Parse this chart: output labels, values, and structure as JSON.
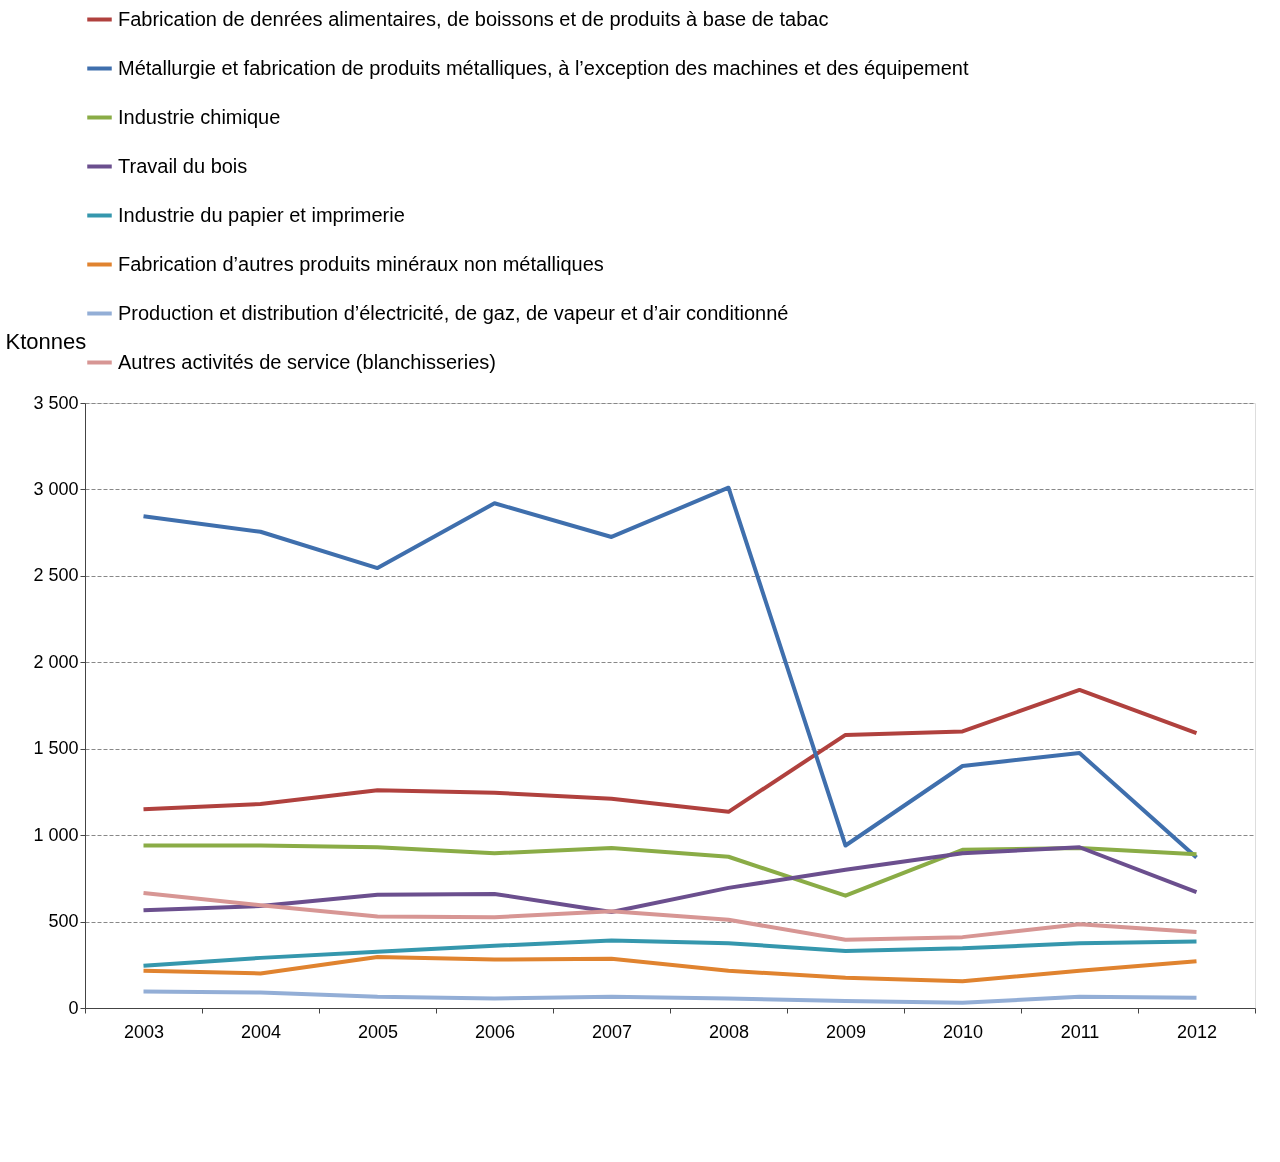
{
  "chart_data": {
    "type": "line",
    "ylabel": "Ktonnes",
    "categories": [
      "2003",
      "2004",
      "2005",
      "2006",
      "2007",
      "2008",
      "2009",
      "2010",
      "2011",
      "2012"
    ],
    "series": [
      {
        "name": "Fabrication de denrées alimentaires, de boissons et de produits à base de tabac",
        "color": "#b0413e",
        "values": [
          1150,
          1180,
          1260,
          1245,
          1210,
          1135,
          1580,
          1600,
          1840,
          1590
        ]
      },
      {
        "name": "Métallurgie et fabrication de produits métalliques, à l’exception des machines et des équipement",
        "color": "#3f6fad",
        "values": [
          2845,
          2755,
          2545,
          2920,
          2725,
          3010,
          940,
          1400,
          1475,
          870
        ]
      },
      {
        "name": "Industrie chimique",
        "color": "#8aac46",
        "values": [
          940,
          940,
          930,
          895,
          925,
          875,
          650,
          915,
          925,
          890
        ]
      },
      {
        "name": "Travail du bois",
        "color": "#6b4f8e",
        "values": [
          565,
          590,
          655,
          660,
          555,
          695,
          800,
          895,
          930,
          670
        ]
      },
      {
        "name": "Industrie du papier et imprimerie",
        "color": "#3597ad",
        "values": [
          245,
          290,
          325,
          360,
          390,
          375,
          330,
          345,
          375,
          385
        ]
      },
      {
        "name": "Fabrication d’autres produits minéraux non métalliques",
        "color": "#e0832f",
        "values": [
          215,
          200,
          295,
          280,
          285,
          215,
          175,
          155,
          215,
          270
        ]
      },
      {
        "name": "Production et distribution d’électricité, de gaz, de vapeur et d’air conditionné",
        "color": "#93aed6",
        "values": [
          95,
          90,
          65,
          55,
          65,
          55,
          40,
          30,
          65,
          60
        ]
      },
      {
        "name": "Autres activités de service (blanchisseries)",
        "color": "#d79694",
        "values": [
          665,
          595,
          530,
          525,
          560,
          510,
          395,
          410,
          485,
          440
        ]
      }
    ],
    "ylim": [
      0,
      3500
    ],
    "yticks": [
      0,
      {
        "value": 500,
        "label": "500"
      },
      {
        "value": 1000,
        "label": "1 000"
      },
      {
        "value": 1500,
        "label": "1 500"
      },
      {
        "value": 2000,
        "label": "2 000"
      },
      {
        "value": 2500,
        "label": "2 500"
      },
      {
        "value": 3000,
        "label": "3 000"
      },
      {
        "value": 3500,
        "label": "3 500"
      }
    ],
    "grid": "y",
    "legend": "top",
    "marker": "none",
    "line_style": "solid"
  }
}
